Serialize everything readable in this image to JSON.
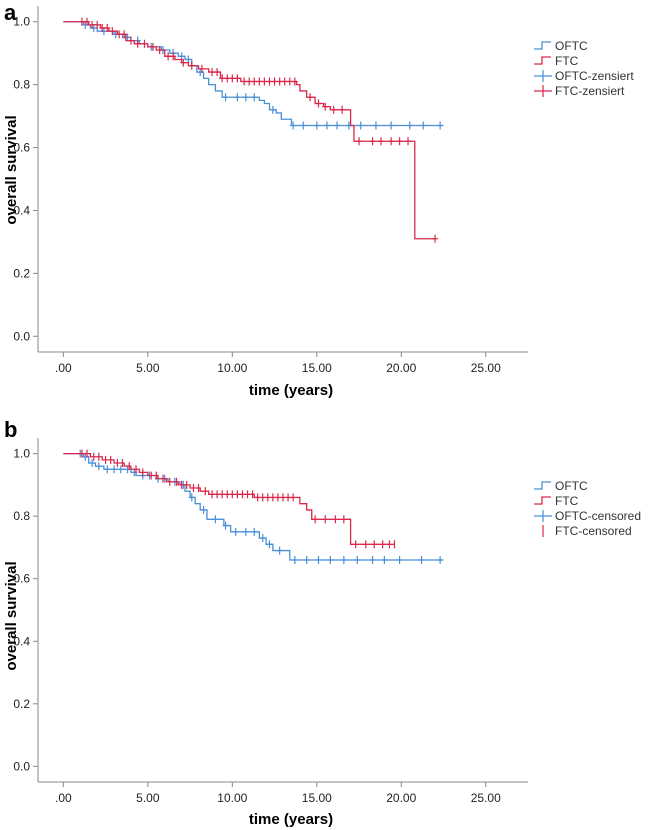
{
  "chart_data": [
    {
      "type": "line",
      "panel_label": "a",
      "xlabel": "time (years)",
      "ylabel": "overall survival",
      "xlim": [
        -1.5,
        27.5
      ],
      "ylim": [
        -0.05,
        1.05
      ],
      "x_ticks": [
        0,
        5,
        10,
        15,
        20,
        25
      ],
      "x_tick_labels": [
        ".00",
        "5.00",
        "10.00",
        "15.00",
        "20.00",
        "25.00"
      ],
      "y_ticks": [
        0,
        0.2,
        0.4,
        0.6,
        0.8,
        1.0
      ],
      "y_tick_labels": [
        "0.0",
        "0.2",
        "0.4",
        "0.6",
        "0.8",
        "1.0"
      ],
      "legend_position": "top-right",
      "series": [
        {
          "name": "OFTC",
          "color": "#4a90d9",
          "steps": [
            [
              0,
              1.0
            ],
            [
              1.2,
              0.99
            ],
            [
              1.6,
              0.98
            ],
            [
              2.0,
              0.97
            ],
            [
              3.0,
              0.96
            ],
            [
              3.5,
              0.95
            ],
            [
              4.0,
              0.94
            ],
            [
              4.5,
              0.93
            ],
            [
              5.0,
              0.92
            ],
            [
              5.8,
              0.91
            ],
            [
              6.3,
              0.9
            ],
            [
              6.8,
              0.89
            ],
            [
              7.2,
              0.88
            ],
            [
              7.6,
              0.86
            ],
            [
              7.9,
              0.84
            ],
            [
              8.3,
              0.82
            ],
            [
              8.6,
              0.8
            ],
            [
              9.0,
              0.78
            ],
            [
              9.4,
              0.76
            ],
            [
              11.0,
              0.76
            ],
            [
              11.6,
              0.75
            ],
            [
              11.9,
              0.74
            ],
            [
              12.2,
              0.72
            ],
            [
              12.6,
              0.71
            ],
            [
              12.9,
              0.69
            ],
            [
              13.5,
              0.67
            ],
            [
              22.5,
              0.67
            ]
          ],
          "censored_x": [
            1.3,
            1.8,
            2.4,
            3.1,
            3.8,
            4.4,
            5.2,
            5.9,
            6.5,
            7.0,
            7.4,
            8.1,
            9.6,
            10.3,
            10.8,
            11.3,
            12.4,
            13.6,
            14.2,
            15.0,
            15.6,
            16.2,
            16.9,
            17.6,
            18.5,
            19.4,
            20.5,
            21.3,
            22.3
          ]
        },
        {
          "name": "FTC",
          "color": "#d9284a",
          "steps": [
            [
              0,
              1.0
            ],
            [
              1.5,
              0.99
            ],
            [
              2.2,
              0.98
            ],
            [
              2.7,
              0.97
            ],
            [
              3.2,
              0.96
            ],
            [
              3.7,
              0.94
            ],
            [
              4.2,
              0.93
            ],
            [
              5.0,
              0.92
            ],
            [
              5.5,
              0.91
            ],
            [
              6.0,
              0.89
            ],
            [
              6.6,
              0.88
            ],
            [
              7.0,
              0.87
            ],
            [
              7.4,
              0.86
            ],
            [
              8.0,
              0.85
            ],
            [
              8.6,
              0.84
            ],
            [
              9.3,
              0.82
            ],
            [
              10.5,
              0.81
            ],
            [
              13.8,
              0.8
            ],
            [
              14.0,
              0.78
            ],
            [
              14.4,
              0.76
            ],
            [
              14.9,
              0.74
            ],
            [
              15.4,
              0.73
            ],
            [
              15.8,
              0.72
            ],
            [
              17.0,
              0.67
            ],
            [
              17.2,
              0.62
            ],
            [
              20.7,
              0.62
            ],
            [
              20.8,
              0.31
            ],
            [
              22.0,
              0.31
            ]
          ],
          "censored_x": [
            1.1,
            1.4,
            1.7,
            2.0,
            2.3,
            2.6,
            2.9,
            3.3,
            3.6,
            4.0,
            4.4,
            4.8,
            5.3,
            5.7,
            6.2,
            6.5,
            7.1,
            7.6,
            8.2,
            8.8,
            9.1,
            9.4,
            9.7,
            10.0,
            10.3,
            10.7,
            11.0,
            11.3,
            11.6,
            11.9,
            12.2,
            12.5,
            12.8,
            13.1,
            13.4,
            13.7,
            14.6,
            15.1,
            15.5,
            16.0,
            16.5,
            17.5,
            18.3,
            18.8,
            19.4,
            19.9,
            20.4,
            22.0
          ]
        }
      ],
      "legend": [
        {
          "label": "OFTC",
          "symbol": "step",
          "color": "#4a90d9"
        },
        {
          "label": "FTC",
          "symbol": "step",
          "color": "#d9284a"
        },
        {
          "label": "OFTC-zensiert",
          "symbol": "cross",
          "color": "#4a90d9"
        },
        {
          "label": "FTC-zensiert",
          "symbol": "cross",
          "color": "#d9284a"
        }
      ]
    },
    {
      "type": "line",
      "panel_label": "b",
      "xlabel": "time (years)",
      "ylabel": "overall survival",
      "xlim": [
        -1.5,
        27.5
      ],
      "ylim": [
        -0.05,
        1.05
      ],
      "x_ticks": [
        0,
        5,
        10,
        15,
        20,
        25
      ],
      "x_tick_labels": [
        ".00",
        "5.00",
        "10.00",
        "15.00",
        "20.00",
        "25.00"
      ],
      "y_ticks": [
        0,
        0.2,
        0.4,
        0.6,
        0.8,
        1.0
      ],
      "y_tick_labels": [
        "0.0",
        "0.2",
        "0.4",
        "0.6",
        "0.8",
        "1.0"
      ],
      "legend_position": "top-right",
      "series": [
        {
          "name": "OFTC",
          "color": "#4a90d9",
          "steps": [
            [
              0,
              1.0
            ],
            [
              1.2,
              0.99
            ],
            [
              1.5,
              0.97
            ],
            [
              1.9,
              0.96
            ],
            [
              2.4,
              0.95
            ],
            [
              4.0,
              0.94
            ],
            [
              4.3,
              0.93
            ],
            [
              5.5,
              0.92
            ],
            [
              6.2,
              0.91
            ],
            [
              6.9,
              0.9
            ],
            [
              7.2,
              0.88
            ],
            [
              7.5,
              0.86
            ],
            [
              7.8,
              0.84
            ],
            [
              8.1,
              0.82
            ],
            [
              8.5,
              0.79
            ],
            [
              9.5,
              0.77
            ],
            [
              9.9,
              0.75
            ],
            [
              11.2,
              0.75
            ],
            [
              11.6,
              0.73
            ],
            [
              12.0,
              0.71
            ],
            [
              12.4,
              0.69
            ],
            [
              13.4,
              0.66
            ],
            [
              22.5,
              0.66
            ]
          ],
          "censored_x": [
            1.0,
            1.3,
            1.7,
            2.1,
            2.6,
            3.0,
            3.4,
            3.8,
            4.2,
            4.7,
            5.1,
            5.6,
            6.0,
            6.6,
            7.1,
            7.6,
            8.3,
            9.0,
            9.6,
            10.2,
            10.8,
            11.3,
            11.8,
            12.2,
            12.8,
            13.7,
            14.4,
            15.1,
            15.8,
            16.6,
            17.4,
            18.3,
            19.0,
            19.9,
            21.2,
            22.3
          ]
        },
        {
          "name": "FTC",
          "color": "#d9284a",
          "steps": [
            [
              0,
              1.0
            ],
            [
              1.6,
              0.99
            ],
            [
              2.3,
              0.98
            ],
            [
              3.0,
              0.97
            ],
            [
              3.6,
              0.96
            ],
            [
              4.0,
              0.95
            ],
            [
              4.5,
              0.94
            ],
            [
              5.0,
              0.93
            ],
            [
              5.6,
              0.92
            ],
            [
              6.1,
              0.91
            ],
            [
              6.8,
              0.9
            ],
            [
              7.5,
              0.89
            ],
            [
              8.1,
              0.88
            ],
            [
              8.6,
              0.87
            ],
            [
              11.3,
              0.86
            ],
            [
              14.0,
              0.84
            ],
            [
              14.4,
              0.82
            ],
            [
              14.7,
              0.79
            ],
            [
              16.9,
              0.79
            ],
            [
              17.0,
              0.71
            ],
            [
              19.6,
              0.71
            ]
          ],
          "censored_x": [
            1.1,
            1.4,
            1.8,
            2.1,
            2.5,
            2.8,
            3.2,
            3.5,
            3.9,
            4.3,
            4.7,
            5.2,
            5.5,
            5.9,
            6.3,
            6.7,
            7.0,
            7.3,
            7.7,
            8.0,
            8.4,
            8.8,
            9.1,
            9.4,
            9.7,
            10.0,
            10.3,
            10.6,
            10.9,
            11.2,
            11.5,
            11.8,
            12.1,
            12.4,
            12.7,
            13.0,
            13.3,
            13.6,
            14.9,
            15.5,
            16.1,
            16.6,
            17.3,
            17.9,
            18.4,
            18.9,
            19.3,
            19.6
          ]
        }
      ],
      "legend": [
        {
          "label": "OFTC",
          "symbol": "step",
          "color": "#4a90d9"
        },
        {
          "label": "FTC",
          "symbol": "step",
          "color": "#d9284a"
        },
        {
          "label": "OFTC-censored",
          "symbol": "cross",
          "color": "#4a90d9"
        },
        {
          "label": "FTC-censored",
          "symbol": "tick",
          "color": "#d9284a"
        }
      ]
    }
  ]
}
